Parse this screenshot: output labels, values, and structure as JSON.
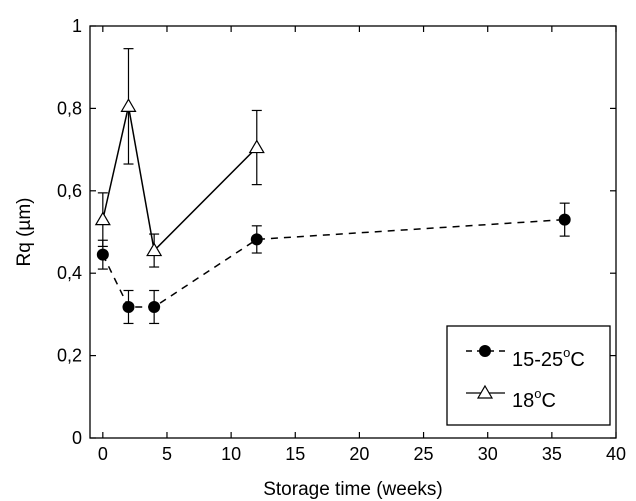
{
  "chart_data": {
    "type": "line",
    "xlabel": "Storage time (weeks)",
    "ylabel": "Rq (µm)",
    "xlim": [
      -1,
      40
    ],
    "ylim": [
      0,
      1
    ],
    "xticks": [
      0,
      5,
      10,
      15,
      20,
      25,
      30,
      35,
      40
    ],
    "yticks": [
      0,
      0.2,
      0.4,
      0.6,
      0.8,
      1
    ],
    "xtick_labels": [
      "0",
      "5",
      "10",
      "15",
      "20",
      "25",
      "30",
      "35",
      "40"
    ],
    "ytick_labels": [
      "0",
      "0,2",
      "0,4",
      "0,6",
      "0,8",
      "1"
    ],
    "grid": false,
    "legend_position": "bottom-right",
    "series": [
      {
        "name": "15-25°C",
        "label_main": "15-25",
        "label_sup": "o",
        "label_tail": "C",
        "marker": "filled-circle",
        "line_style": "dashed",
        "x": [
          0,
          2,
          4,
          12,
          36
        ],
        "y": [
          0.445,
          0.318,
          0.318,
          0.482,
          0.53
        ],
        "yerr": [
          0.035,
          0.04,
          0.04,
          0.033,
          0.04
        ]
      },
      {
        "name": "18°C",
        "label_main": "18",
        "label_sup": "o",
        "label_tail": "C",
        "marker": "open-triangle",
        "line_style": "solid",
        "x": [
          0,
          2,
          4,
          12
        ],
        "y": [
          0.53,
          0.805,
          0.455,
          0.705
        ],
        "yerr": [
          0.065,
          0.14,
          0.04,
          0.09
        ]
      }
    ]
  }
}
